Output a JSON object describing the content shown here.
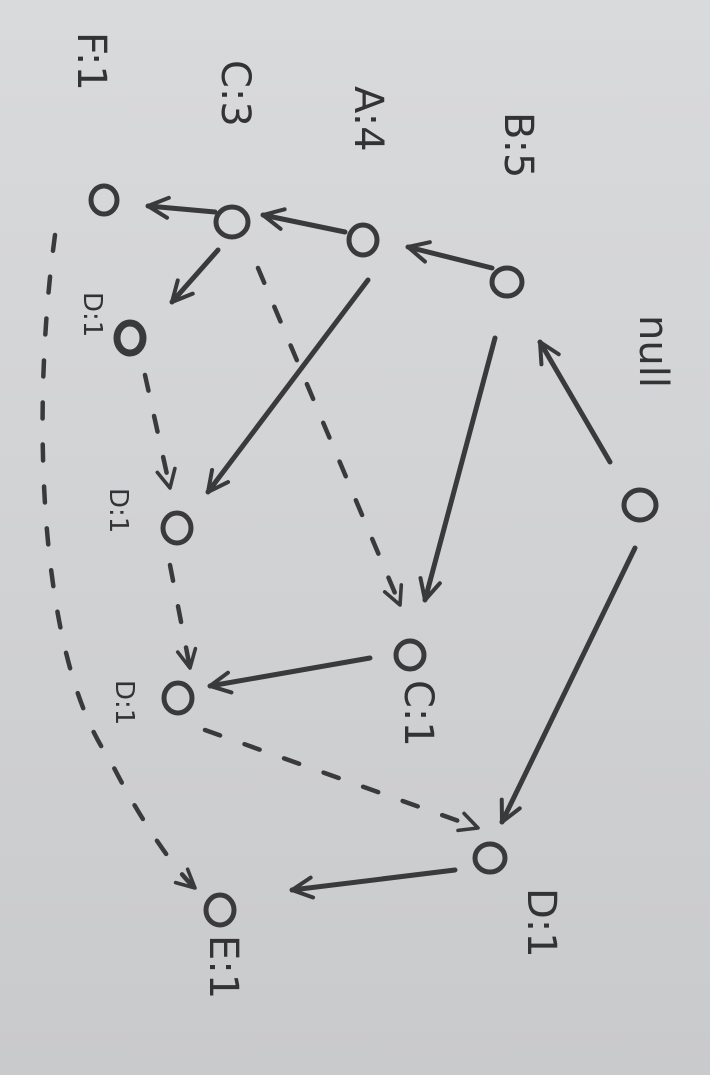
{
  "diagram": {
    "title": "",
    "nodes": [
      {
        "id": "root",
        "label": "null"
      },
      {
        "id": "b",
        "label": "B:5"
      },
      {
        "id": "a",
        "label": "A:4"
      },
      {
        "id": "c1",
        "label": "C:3"
      },
      {
        "id": "f",
        "label": "F:1"
      },
      {
        "id": "d1",
        "label": "D:1"
      },
      {
        "id": "d2",
        "label": "D:1"
      },
      {
        "id": "d3",
        "label": "D:1"
      },
      {
        "id": "c2",
        "label": "C:1"
      },
      {
        "id": "d4",
        "label": "D:1"
      },
      {
        "id": "e",
        "label": "E:1"
      }
    ],
    "tree_edges": [
      [
        "root",
        "b"
      ],
      [
        "root",
        "d4"
      ],
      [
        "b",
        "a"
      ],
      [
        "b",
        "c2"
      ],
      [
        "a",
        "c1"
      ],
      [
        "a",
        "d2"
      ],
      [
        "c1",
        "f"
      ],
      [
        "c1",
        "d1"
      ],
      [
        "c2",
        "d3"
      ],
      [
        "d4",
        "e"
      ]
    ],
    "link_edges": [
      [
        "d1",
        "d2"
      ],
      [
        "d2",
        "d3"
      ],
      [
        "d3",
        "d4"
      ],
      [
        "c1",
        "c2"
      ],
      [
        "f",
        "e"
      ]
    ]
  }
}
